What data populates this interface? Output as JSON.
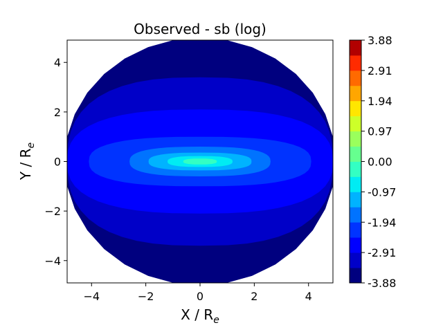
{
  "chart_data": {
    "type": "contour",
    "title": "Observed - sb (log)",
    "xlabel": "X / R",
    "xlabel_sub": "e",
    "ylabel": "Y / R",
    "ylabel_sub": "e",
    "xlim": [
      -4.9,
      4.9
    ],
    "ylim": [
      -4.9,
      4.9
    ],
    "xticks": [
      -4,
      -2,
      0,
      2,
      4
    ],
    "xtick_labels": [
      "−4",
      "−2",
      "0",
      "2",
      "4"
    ],
    "yticks": [
      -4,
      -2,
      0,
      2,
      4
    ],
    "ytick_labels": [
      "−4",
      "−2",
      "0",
      "2",
      "4"
    ],
    "grid": false,
    "colormap": "jet",
    "colorbar": {
      "vmin": -3.88,
      "vmax": 3.88,
      "n_levels": 16,
      "tick_values": [
        3.88,
        2.91,
        1.94,
        0.97,
        0.0,
        -0.97,
        -1.94,
        -2.91,
        -3.88
      ],
      "tick_labels": [
        "3.88",
        "2.91",
        "1.94",
        "0.97",
        "0.00",
        "-0.97",
        "-1.94",
        "-2.91",
        "-3.88"
      ],
      "level_colors": [
        "#00007f",
        "#0000c8",
        "#0000ff",
        "#0033ff",
        "#0073ff",
        "#00b3ff",
        "#00ecf3",
        "#33ffc3",
        "#66ff8f",
        "#9aff5c",
        "#cdff29",
        "#ffe600",
        "#ffa600",
        "#ff6a00",
        "#ff2b00",
        "#b20000"
      ]
    },
    "filled_regions": [
      {
        "level": "-3.88 to -3.40",
        "color": "#00007f",
        "x_halfwidth": 4.9,
        "y_halfwidth": 4.9
      },
      {
        "level": "-3.40 to -2.91",
        "color": "#0000c8",
        "x_halfwidth": 4.9,
        "y_halfwidth": 3.4
      },
      {
        "level": "-2.91 to -2.43",
        "color": "#0000ff",
        "x_halfwidth": 4.9,
        "y_halfwidth": 2.1
      },
      {
        "level": "-2.43 to -1.94",
        "color": "#0033ff",
        "x_halfwidth": 4.1,
        "y_halfwidth": 1.0
      },
      {
        "level": "-1.94 to -1.46",
        "color": "#0073ff",
        "x_halfwidth": 2.6,
        "y_halfwidth": 0.6
      },
      {
        "level": "-1.46 to -0.97",
        "color": "#00b3ff",
        "x_halfwidth": 1.9,
        "y_halfwidth": 0.36
      },
      {
        "level": "-0.97 to -0.49",
        "color": "#00ecf3",
        "x_halfwidth": 1.2,
        "y_halfwidth": 0.22
      },
      {
        "level": "-0.49 to 0.00",
        "color": "#33ffc3",
        "x_halfwidth": 0.62,
        "y_halfwidth": 0.12
      }
    ]
  }
}
